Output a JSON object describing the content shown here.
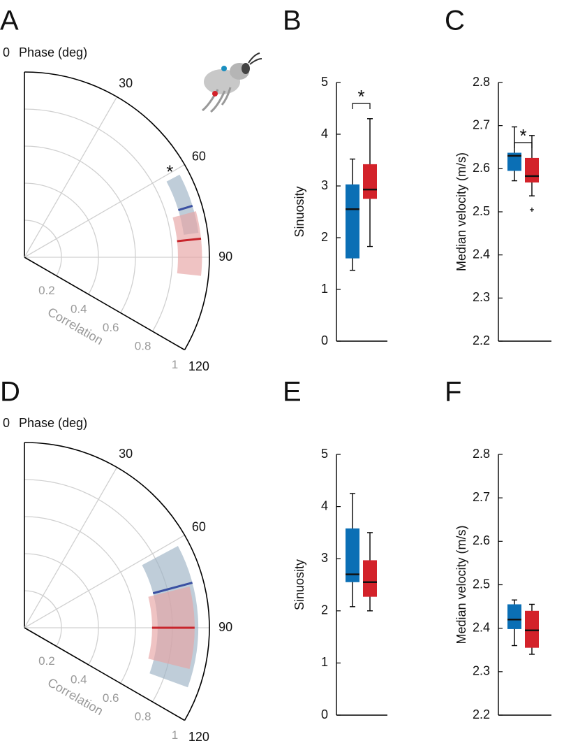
{
  "chart_data": [
    {
      "type": "polar",
      "panel": "A",
      "theta_label": "Phase (deg)",
      "r_label": "Correlation",
      "thetalim": [
        0,
        120
      ],
      "thetaticks": [
        0,
        30,
        60,
        90,
        120
      ],
      "rlim": [
        0,
        1
      ],
      "rticks": [
        0.2,
        0.4,
        0.6,
        0.8,
        1
      ],
      "grid": true,
      "annotation": "*",
      "series": [
        {
          "color": "#3a50a2",
          "band_color": "#9db2c4",
          "phase": 73,
          "phase_range": [
            62,
            82
          ],
          "correlation_range": [
            0.87,
            0.95
          ]
        },
        {
          "color": "#c8252c",
          "band_color": "#e6a3a3",
          "phase": 84,
          "phase_range": [
            75,
            96
          ],
          "correlation_range": [
            0.83,
            0.96
          ]
        }
      ]
    },
    {
      "type": "box",
      "panel": "B",
      "ylabel": "Sinuosity",
      "ylim": [
        0,
        5
      ],
      "yticks": [
        0,
        1,
        2,
        3,
        4,
        5
      ],
      "annotation": "*",
      "series": [
        {
          "color": "#0b6fb5",
          "whislo": 1.37,
          "q1": 1.6,
          "median": 2.55,
          "q3": 3.03,
          "whishi": 3.52,
          "fliers": []
        },
        {
          "color": "#d3222a",
          "whislo": 1.83,
          "q1": 2.75,
          "median": 2.93,
          "q3": 3.42,
          "whishi": 4.3,
          "fliers": []
        }
      ]
    },
    {
      "type": "box",
      "panel": "C",
      "ylabel": "Median velocity (m/s)",
      "ylim": [
        2.2,
        2.8
      ],
      "yticks": [
        2.2,
        2.3,
        2.4,
        2.5,
        2.6,
        2.7,
        2.8
      ],
      "annotation": "*",
      "series": [
        {
          "color": "#0b6fb5",
          "whislo": 2.572,
          "q1": 2.595,
          "median": 2.63,
          "q3": 2.637,
          "whishi": 2.697,
          "fliers": []
        },
        {
          "color": "#d3222a",
          "whislo": 2.537,
          "q1": 2.568,
          "median": 2.583,
          "q3": 2.625,
          "whishi": 2.677,
          "fliers": [
            2.505
          ]
        }
      ]
    },
    {
      "type": "polar",
      "panel": "D",
      "theta_label": "Phase (deg)",
      "r_label": "Correlation",
      "thetalim": [
        0,
        120
      ],
      "thetaticks": [
        0,
        30,
        60,
        90,
        120
      ],
      "rlim": [
        0,
        1
      ],
      "rticks": [
        0.2,
        0.4,
        0.6,
        0.8,
        1
      ],
      "grid": true,
      "series": [
        {
          "color": "#3a50a2",
          "band_color": "#9db2c4",
          "phase": 75,
          "phase_range": [
            62,
            110
          ],
          "correlation_range": [
            0.72,
            0.94
          ]
        },
        {
          "color": "#c8252c",
          "band_color": "#e6a3a3",
          "phase": 90,
          "phase_range": [
            76,
            104
          ],
          "correlation_range": [
            0.69,
            0.92
          ]
        }
      ]
    },
    {
      "type": "box",
      "panel": "E",
      "ylabel": "Sinuosity",
      "ylim": [
        0,
        5
      ],
      "yticks": [
        0,
        1,
        2,
        3,
        4,
        5
      ],
      "series": [
        {
          "color": "#0b6fb5",
          "whislo": 2.08,
          "q1": 2.55,
          "median": 2.7,
          "q3": 3.58,
          "whishi": 4.25,
          "fliers": []
        },
        {
          "color": "#d3222a",
          "whislo": 2.0,
          "q1": 2.27,
          "median": 2.55,
          "q3": 2.97,
          "whishi": 3.5,
          "fliers": []
        }
      ]
    },
    {
      "type": "box",
      "panel": "F",
      "ylabel": "Median velocity (m/s)",
      "ylim": [
        2.2,
        2.8
      ],
      "yticks": [
        2.2,
        2.3,
        2.4,
        2.5,
        2.6,
        2.7,
        2.8
      ],
      "series": [
        {
          "color": "#0b6fb5",
          "whislo": 2.36,
          "q1": 2.398,
          "median": 2.42,
          "q3": 2.455,
          "whishi": 2.465,
          "fliers": []
        },
        {
          "color": "#d3222a",
          "whislo": 2.34,
          "q1": 2.355,
          "median": 2.395,
          "q3": 2.44,
          "whishi": 2.455,
          "fliers": []
        }
      ]
    }
  ]
}
